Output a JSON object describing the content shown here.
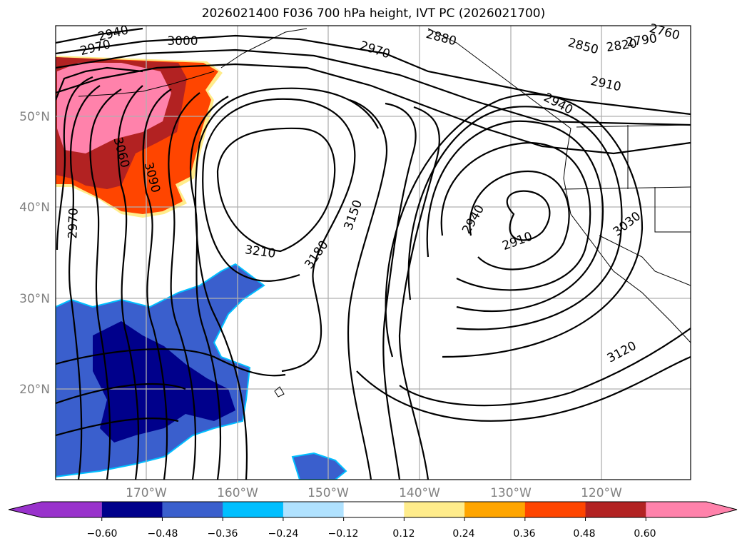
{
  "title": "2026021400 F036 700 hPa height, IVT PC (2026021700)",
  "lat_labels": [
    "50°N",
    "40°N",
    "30°N",
    "20°N"
  ],
  "lon_labels": [
    "170°W",
    "160°W",
    "150°W",
    "140°W",
    "130°W",
    "120°W"
  ],
  "colorbar": {
    "ticks": [
      "−0.60",
      "−0.48",
      "−0.36",
      "−0.24",
      "−0.12",
      "0.12",
      "0.24",
      "0.36",
      "0.48",
      "0.60"
    ],
    "colors": [
      "#9932cc",
      "#00008b",
      "#3a5fcd",
      "#00bfff",
      "#b0e2ff",
      "#ffffff",
      "#ffec8b",
      "#ffa500",
      "#ff4500",
      "#b22222",
      "#ff82ab"
    ]
  },
  "contour_labels": [
    "2940",
    "2970",
    "3000",
    "2970",
    "3060",
    "3090",
    "3210",
    "3180",
    "3150",
    "2970",
    "2880",
    "2850",
    "2820",
    "2790",
    "2760",
    "2910",
    "2940",
    "2940",
    "2910",
    "3030",
    "3120"
  ]
}
